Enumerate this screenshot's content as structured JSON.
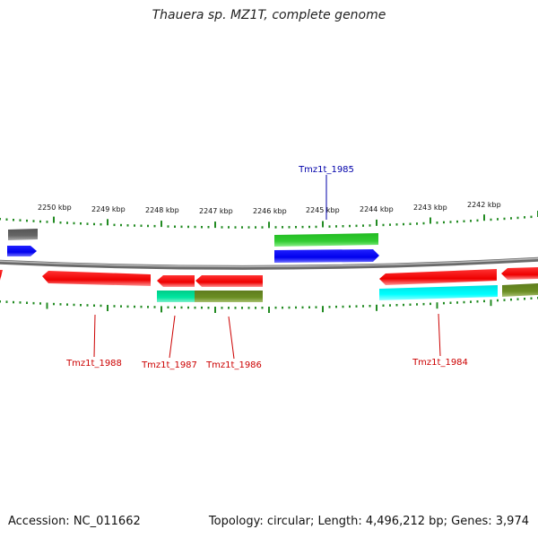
{
  "title": "Thauera sp. MZ1T, complete genome",
  "footer": {
    "accession": "Accession: NC_011662",
    "summary": "Topology: circular; Length: 4,496,212 bp; Genes: 3,974"
  },
  "ruler": {
    "ticks": [
      "2250 kbp",
      "2249 kbp",
      "2248 kbp",
      "2247 kbp",
      "2246 kbp",
      "2245 kbp",
      "2244 kbp",
      "2243 kbp",
      "2242 kbp"
    ],
    "tick_color": "#228b22"
  },
  "genes": {
    "top_label": "Tmz1t_1985",
    "bottom_labels": [
      "Tmz1t_1988",
      "Tmz1t_1987",
      "Tmz1t_1986",
      "Tmz1t_1984"
    ]
  },
  "colors": {
    "backbone": "#8a8a8a",
    "forward_cds": "#0000ff",
    "reverse_cds": "#ff0000",
    "green_feature": "#33cc33",
    "teal_feature": "#00e6a0",
    "olive_feature": "#6b8e23",
    "cyan_feature": "#00ffff",
    "gray_feature": "#666666",
    "blue_label": "#0000aa",
    "red_label": "#cc0000"
  }
}
